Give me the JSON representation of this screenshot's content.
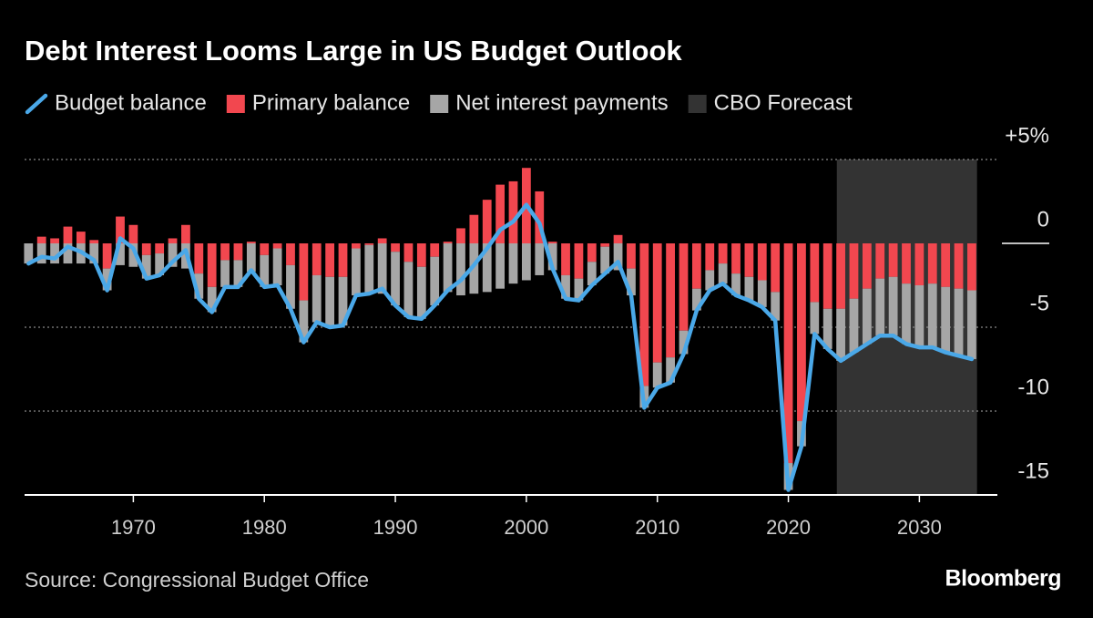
{
  "chart_data": {
    "type": "bar",
    "title": "Debt Interest Looms Large in US Budget Outlook",
    "source": "Source: Congressional Budget Office",
    "logo": "Bloomberg",
    "x": [
      1962,
      1963,
      1964,
      1965,
      1966,
      1967,
      1968,
      1969,
      1970,
      1971,
      1972,
      1973,
      1974,
      1975,
      1976,
      1977,
      1978,
      1979,
      1980,
      1981,
      1982,
      1983,
      1984,
      1985,
      1986,
      1987,
      1988,
      1989,
      1990,
      1991,
      1992,
      1993,
      1994,
      1995,
      1996,
      1997,
      1998,
      1999,
      2000,
      2001,
      2002,
      2003,
      2004,
      2005,
      2006,
      2007,
      2008,
      2009,
      2010,
      2011,
      2012,
      2013,
      2014,
      2015,
      2016,
      2017,
      2018,
      2019,
      2020,
      2021,
      2022,
      2023,
      2024,
      2025,
      2026,
      2027,
      2028,
      2029,
      2030,
      2031,
      2032,
      2033,
      2034
    ],
    "series": [
      {
        "name": "Budget balance",
        "type": "line",
        "color": "#4aa8e8",
        "values": [
          -1.2,
          -0.8,
          -0.9,
          -0.2,
          -0.5,
          -1.0,
          -2.8,
          0.3,
          -0.3,
          -2.1,
          -1.9,
          -1.1,
          -0.4,
          -3.3,
          -4.1,
          -2.6,
          -2.6,
          -1.6,
          -2.6,
          -2.5,
          -3.9,
          -5.9,
          -4.7,
          -5.0,
          -4.9,
          -3.1,
          -3.0,
          -2.7,
          -3.7,
          -4.4,
          -4.5,
          -3.7,
          -2.8,
          -2.2,
          -1.3,
          -0.3,
          0.8,
          1.3,
          2.3,
          1.2,
          -1.5,
          -3.3,
          -3.4,
          -2.5,
          -1.8,
          -1.1,
          -3.1,
          -9.8,
          -8.6,
          -8.3,
          -6.6,
          -4.0,
          -2.8,
          -2.4,
          -3.1,
          -3.4,
          -3.8,
          -4.6,
          -14.7,
          -12.1,
          -5.4,
          -6.3,
          -7.0,
          -6.5,
          -6.0,
          -5.5,
          -5.5,
          -6.0,
          -6.2,
          -6.2,
          -6.5,
          -6.7,
          -6.9
        ]
      },
      {
        "name": "Primary balance",
        "color": "#f2474f",
        "values": [
          0.0,
          0.4,
          0.3,
          1.0,
          0.7,
          0.2,
          -1.5,
          1.6,
          1.1,
          -0.7,
          -0.6,
          0.3,
          1.1,
          -1.8,
          -2.6,
          -1.0,
          -1.0,
          0.1,
          -0.7,
          -0.3,
          -1.3,
          -3.4,
          -1.9,
          -2.0,
          -2.0,
          -0.3,
          -0.1,
          0.3,
          -0.5,
          -1.1,
          -1.4,
          -0.8,
          0.1,
          0.9,
          1.7,
          2.6,
          3.5,
          3.7,
          4.5,
          3.1,
          0.1,
          -1.9,
          -2.1,
          -1.1,
          -0.2,
          0.5,
          -1.5,
          -8.5,
          -7.1,
          -6.8,
          -5.2,
          -2.7,
          -1.6,
          -1.2,
          -1.8,
          -2.0,
          -2.2,
          -2.9,
          -13.1,
          -10.6,
          -3.5,
          -3.9,
          -3.9,
          -3.3,
          -2.7,
          -2.1,
          -2.0,
          -2.4,
          -2.5,
          -2.4,
          -2.6,
          -2.7,
          -2.8
        ]
      },
      {
        "name": "Net interest payments",
        "color": "#a6a6a6",
        "values": [
          -1.2,
          -1.2,
          -1.2,
          -1.2,
          -1.2,
          -1.2,
          -1.3,
          -1.3,
          -1.4,
          -1.4,
          -1.3,
          -1.4,
          -1.5,
          -1.5,
          -1.5,
          -1.6,
          -1.6,
          -1.7,
          -1.9,
          -2.2,
          -2.6,
          -2.5,
          -2.8,
          -3.0,
          -2.9,
          -2.8,
          -2.9,
          -3.0,
          -3.2,
          -3.3,
          -3.1,
          -2.9,
          -2.9,
          -3.1,
          -3.0,
          -2.9,
          -2.7,
          -2.4,
          -2.2,
          -1.9,
          -1.6,
          -1.4,
          -1.3,
          -1.4,
          -1.6,
          -1.6,
          -1.6,
          -1.3,
          -1.5,
          -1.5,
          -1.4,
          -1.3,
          -1.2,
          -1.2,
          -1.3,
          -1.4,
          -1.6,
          -1.7,
          -1.6,
          -1.5,
          -1.9,
          -2.4,
          -3.1,
          -3.2,
          -3.3,
          -3.4,
          -3.5,
          -3.6,
          -3.7,
          -3.8,
          -3.9,
          -4.0,
          -4.1
        ]
      }
    ],
    "shaded_regions": [
      {
        "name": "CBO Forecast",
        "color": "#333333",
        "x": [
          2023.7,
          2034.4
        ]
      }
    ],
    "xlim": [
      1961.7,
      2036.3
    ],
    "xticks": [
      1970,
      1980,
      1990,
      2000,
      2010,
      2020,
      2030
    ],
    "ylim": [
      -15,
      5
    ],
    "yticks": [
      {
        "value": 5,
        "label": "+5%"
      },
      0,
      -5,
      -10,
      -15
    ],
    "grid": true
  }
}
